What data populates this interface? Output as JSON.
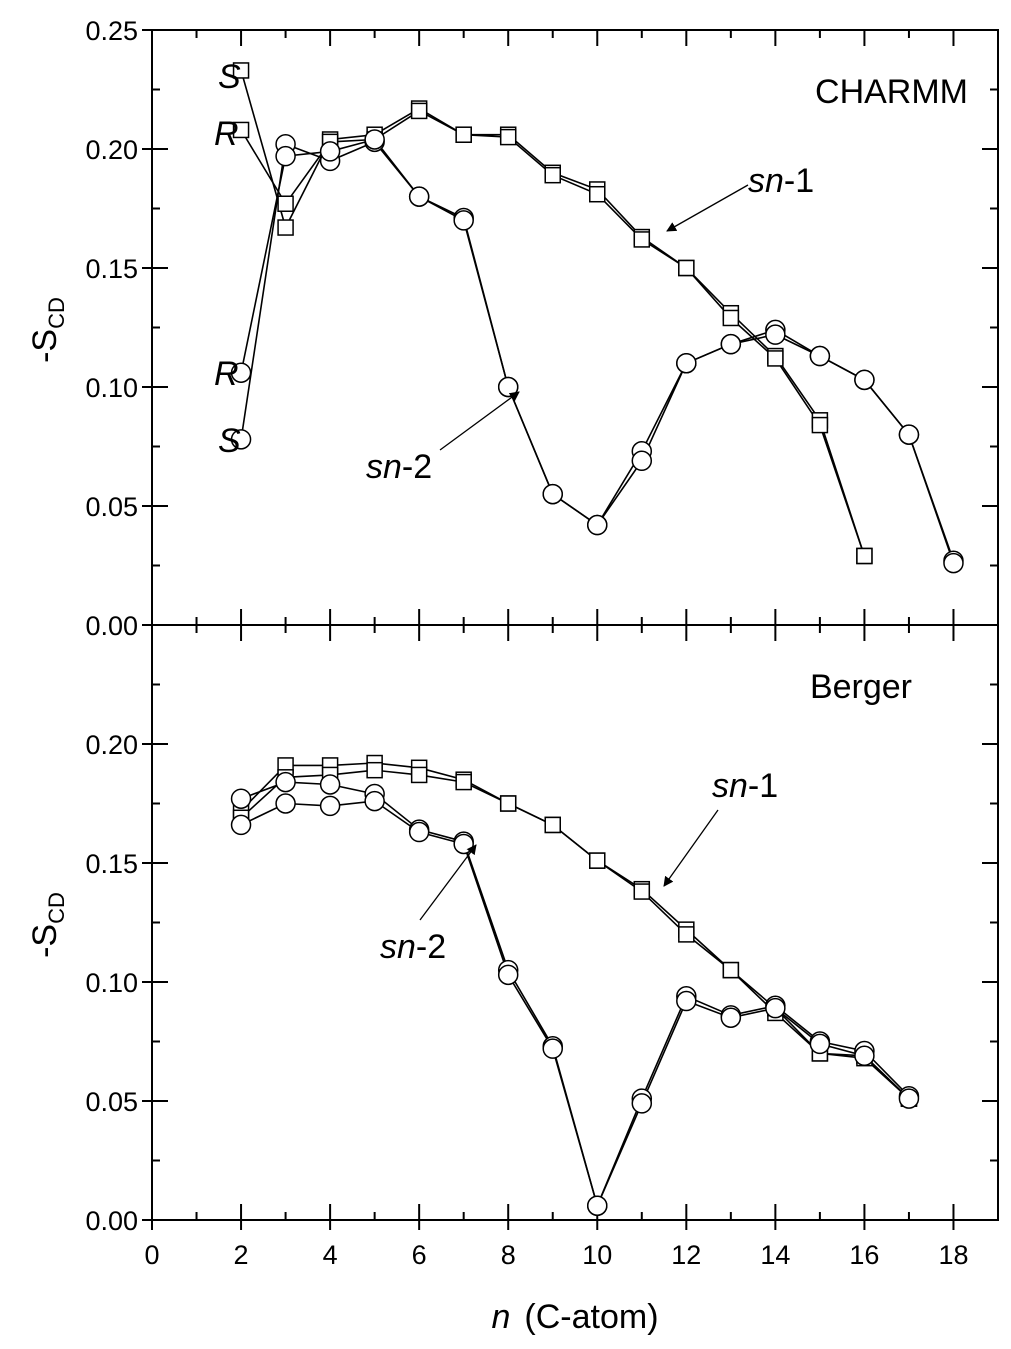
{
  "chart_data": [
    {
      "type": "line",
      "title": "",
      "panel_label": "CHARMM",
      "xlabel": "",
      "ylabel": "-S",
      "ylabel_sub": "CD",
      "xlim": [
        0,
        19
      ],
      "ylim": [
        0,
        0.25
      ],
      "yticks": [
        "0.00",
        "0.05",
        "0.10",
        "0.15",
        "0.20",
        "0.25"
      ],
      "grid": false,
      "legend": "none",
      "series": [
        {
          "marker": "square",
          "x": [
            2,
            3,
            4,
            5,
            6,
            7,
            8,
            9,
            10,
            11,
            12,
            13,
            14,
            15,
            16
          ],
          "values": [
            0.233,
            0.167,
            0.204,
            0.206,
            0.217,
            0.206,
            0.206,
            0.19,
            0.183,
            0.163,
            0.15,
            0.131,
            0.113,
            0.086,
            0.029
          ]
        },
        {
          "marker": "square",
          "x": [
            2,
            3,
            4,
            5,
            6,
            7,
            8,
            9,
            10,
            11,
            12,
            13,
            14,
            15,
            16
          ],
          "values": [
            0.208,
            0.177,
            0.203,
            0.204,
            0.216,
            0.206,
            0.205,
            0.189,
            0.181,
            0.162,
            0.15,
            0.129,
            0.112,
            0.084,
            0.029
          ]
        },
        {
          "marker": "circle",
          "x": [
            2,
            3,
            4,
            5,
            6,
            7,
            8,
            9,
            10,
            11,
            12,
            13,
            14,
            15,
            16,
            17,
            18
          ],
          "values": [
            0.078,
            0.202,
            0.195,
            0.203,
            0.18,
            0.171,
            0.1,
            0.055,
            0.042,
            0.073,
            0.11,
            0.118,
            0.124,
            0.113,
            0.103,
            0.08,
            0.027
          ]
        },
        {
          "marker": "circle",
          "x": [
            2,
            3,
            4,
            5,
            6,
            7,
            8,
            9,
            10,
            11,
            12,
            13,
            14,
            15,
            16,
            17,
            18
          ],
          "values": [
            0.106,
            0.197,
            0.199,
            0.204,
            0.18,
            0.17,
            0.1,
            0.055,
            0.042,
            0.069,
            0.11,
            0.118,
            0.122,
            0.113,
            0.103,
            0.08,
            0.026
          ]
        }
      ],
      "annotations": {
        "square_s": "S",
        "square_r": "R",
        "circle_r": "R",
        "circle_s": "S",
        "sn1_italic": "sn",
        "sn1_suffix": "-1",
        "sn2_italic": "sn",
        "sn2_suffix": "-2"
      }
    },
    {
      "type": "line",
      "title": "",
      "panel_label": "Berger",
      "xlabel_italic": "n",
      "xlabel": "(C-atom)",
      "ylabel": "-S",
      "ylabel_sub": "CD",
      "xlim": [
        0,
        19
      ],
      "ylim": [
        0,
        0.25
      ],
      "xticks": [
        "0",
        "2",
        "4",
        "6",
        "8",
        "10",
        "12",
        "14",
        "16",
        "18"
      ],
      "yticks": [
        "0.00",
        "0.05",
        "0.10",
        "0.15",
        "0.20"
      ],
      "grid": false,
      "legend": "none",
      "series": [
        {
          "marker": "square",
          "x": [
            2,
            3,
            4,
            5,
            6,
            7,
            8,
            9,
            10,
            11,
            12,
            13,
            14,
            15,
            16,
            17
          ],
          "values": [
            0.172,
            0.191,
            0.191,
            0.192,
            0.19,
            0.185,
            0.175,
            0.166,
            0.151,
            0.139,
            0.122,
            0.105,
            0.087,
            0.07,
            0.069,
            0.051
          ]
        },
        {
          "marker": "square",
          "x": [
            2,
            3,
            4,
            5,
            6,
            7,
            8,
            9,
            10,
            11,
            12,
            13,
            14,
            15,
            16,
            17
          ],
          "values": [
            0.169,
            0.186,
            0.187,
            0.189,
            0.187,
            0.184,
            0.175,
            0.166,
            0.151,
            0.138,
            0.12,
            0.105,
            0.089,
            0.07,
            0.068,
            0.051
          ]
        },
        {
          "marker": "circle",
          "x": [
            2,
            3,
            4,
            5,
            6,
            7,
            8,
            9,
            10,
            11,
            12,
            13,
            14,
            15,
            16,
            17
          ],
          "values": [
            0.177,
            0.184,
            0.183,
            0.179,
            0.164,
            0.159,
            0.105,
            0.073,
            0.006,
            0.051,
            0.094,
            0.086,
            0.09,
            0.075,
            0.071,
            0.052
          ]
        },
        {
          "marker": "circle",
          "x": [
            2,
            3,
            4,
            5,
            6,
            7,
            8,
            9,
            10,
            11,
            12,
            13,
            14,
            15,
            16,
            17
          ],
          "values": [
            0.166,
            0.175,
            0.174,
            0.176,
            0.163,
            0.158,
            0.103,
            0.072,
            0.006,
            0.049,
            0.092,
            0.085,
            0.089,
            0.074,
            0.069,
            0.051
          ]
        }
      ],
      "annotations": {
        "sn1_italic": "sn",
        "sn1_suffix": "-1",
        "sn2_italic": "sn",
        "sn2_suffix": "-2"
      }
    }
  ]
}
